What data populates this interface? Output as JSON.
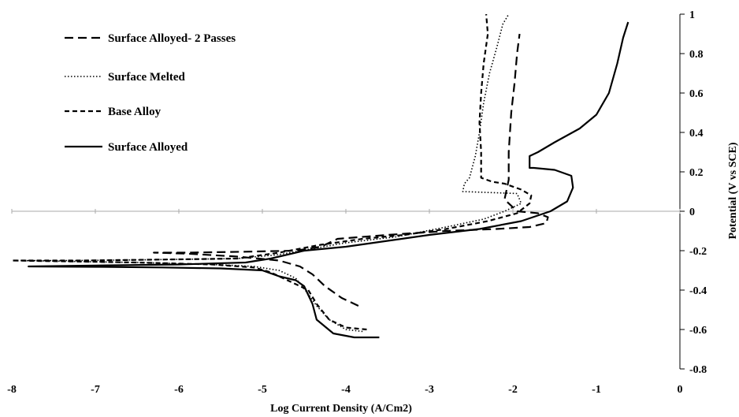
{
  "chart_data": {
    "type": "line",
    "xlabel": "Log Current Density (A/Cm2)",
    "ylabel": "Potential (V vs SCE)",
    "xlim": [
      -8,
      0
    ],
    "ylim": [
      -0.8,
      1
    ],
    "x_ticks": [
      -8,
      -7,
      -6,
      -5,
      -4,
      -3,
      -2,
      -1,
      0
    ],
    "x_tick_labels": [
      "-8",
      "-7",
      "-6",
      "-5",
      "-4",
      "-3",
      "-2",
      "-1",
      "0"
    ],
    "y_ticks": [
      -0.8,
      -0.6,
      -0.4,
      -0.2,
      0,
      0.2,
      0.4,
      0.6,
      0.8,
      1
    ],
    "y_tick_labels": [
      "-0.8",
      "-0.6",
      "-0.4",
      "-0.2",
      "0",
      "0.2",
      "0.4",
      "0.6",
      "0.8",
      "1"
    ],
    "y_axis_side": "right",
    "grid": false,
    "legend_position": "top-left",
    "series": [
      {
        "name": "Surface Alloyed- 2 Passes",
        "dash": "long-dash",
        "color": "#000000",
        "points": [
          [
            -3.85,
            -0.48
          ],
          [
            -4.05,
            -0.44
          ],
          [
            -4.25,
            -0.38
          ],
          [
            -4.4,
            -0.32
          ],
          [
            -4.55,
            -0.28
          ],
          [
            -4.8,
            -0.25
          ],
          [
            -5.3,
            -0.23
          ],
          [
            -5.9,
            -0.215
          ],
          [
            -6.3,
            -0.21
          ],
          [
            -5.9,
            -0.21
          ],
          [
            -5.2,
            -0.205
          ],
          [
            -4.6,
            -0.2
          ],
          [
            -4.3,
            -0.18
          ],
          [
            -4.1,
            -0.14
          ],
          [
            -3.5,
            -0.12
          ],
          [
            -2.8,
            -0.1
          ],
          [
            -2.2,
            -0.09
          ],
          [
            -1.8,
            -0.08
          ],
          [
            -1.6,
            -0.06
          ],
          [
            -1.58,
            -0.03
          ],
          [
            -1.7,
            -0.01
          ],
          [
            -1.95,
            0.0
          ],
          [
            -2.1,
            0.06
          ],
          [
            -2.05,
            0.16
          ],
          [
            -2.05,
            0.3
          ],
          [
            -2.02,
            0.5
          ],
          [
            -1.98,
            0.65
          ],
          [
            -1.95,
            0.8
          ],
          [
            -1.92,
            0.9
          ]
        ]
      },
      {
        "name": "Surface Melted",
        "dash": "dotted",
        "color": "#000000",
        "points": [
          [
            -3.8,
            -0.61
          ],
          [
            -4.0,
            -0.6
          ],
          [
            -4.2,
            -0.55
          ],
          [
            -4.35,
            -0.48
          ],
          [
            -4.45,
            -0.42
          ],
          [
            -4.6,
            -0.34
          ],
          [
            -4.8,
            -0.3
          ],
          [
            -5.1,
            -0.28
          ],
          [
            -5.6,
            -0.27
          ],
          [
            -6.5,
            -0.26
          ],
          [
            -7.2,
            -0.255
          ],
          [
            -7.9,
            -0.25
          ],
          [
            -7.2,
            -0.25
          ],
          [
            -6.2,
            -0.245
          ],
          [
            -5.3,
            -0.24
          ],
          [
            -4.8,
            -0.22
          ],
          [
            -4.4,
            -0.19
          ],
          [
            -4.0,
            -0.16
          ],
          [
            -3.4,
            -0.13
          ],
          [
            -2.8,
            -0.08
          ],
          [
            -2.35,
            -0.04
          ],
          [
            -2.1,
            0.0
          ],
          [
            -1.9,
            0.04
          ],
          [
            -1.95,
            0.09
          ],
          [
            -2.6,
            0.1
          ],
          [
            -2.58,
            0.14
          ],
          [
            -2.52,
            0.17
          ],
          [
            -2.45,
            0.28
          ],
          [
            -2.4,
            0.4
          ],
          [
            -2.35,
            0.55
          ],
          [
            -2.28,
            0.7
          ],
          [
            -2.2,
            0.82
          ],
          [
            -2.12,
            0.95
          ],
          [
            -2.05,
            1.0
          ]
        ]
      },
      {
        "name": "Base Alloy",
        "dash": "short-dash",
        "color": "#000000",
        "points": [
          [
            -3.75,
            -0.6
          ],
          [
            -4.0,
            -0.59
          ],
          [
            -4.2,
            -0.55
          ],
          [
            -4.35,
            -0.47
          ],
          [
            -4.45,
            -0.4
          ],
          [
            -4.65,
            -0.36
          ],
          [
            -4.9,
            -0.31
          ],
          [
            -5.1,
            -0.285
          ],
          [
            -5.6,
            -0.27
          ],
          [
            -6.5,
            -0.26
          ],
          [
            -7.2,
            -0.255
          ],
          [
            -8.0,
            -0.25
          ],
          [
            -7.2,
            -0.25
          ],
          [
            -6.2,
            -0.245
          ],
          [
            -5.3,
            -0.24
          ],
          [
            -4.8,
            -0.21
          ],
          [
            -4.3,
            -0.17
          ],
          [
            -3.8,
            -0.14
          ],
          [
            -3.3,
            -0.12
          ],
          [
            -2.8,
            -0.09
          ],
          [
            -2.3,
            -0.05
          ],
          [
            -1.95,
            -0.01
          ],
          [
            -1.8,
            0.04
          ],
          [
            -1.78,
            0.08
          ],
          [
            -1.9,
            0.11
          ],
          [
            -2.1,
            0.14
          ],
          [
            -2.25,
            0.15
          ],
          [
            -2.38,
            0.17
          ],
          [
            -2.38,
            0.3
          ],
          [
            -2.4,
            0.45
          ],
          [
            -2.38,
            0.6
          ],
          [
            -2.35,
            0.75
          ],
          [
            -2.3,
            0.9
          ],
          [
            -2.32,
            1.0
          ]
        ]
      },
      {
        "name": "Surface Alloyed",
        "dash": "solid",
        "color": "#000000",
        "points": [
          [
            -3.6,
            -0.64
          ],
          [
            -3.9,
            -0.64
          ],
          [
            -4.15,
            -0.62
          ],
          [
            -4.35,
            -0.55
          ],
          [
            -4.4,
            -0.47
          ],
          [
            -4.5,
            -0.38
          ],
          [
            -4.6,
            -0.35
          ],
          [
            -4.8,
            -0.33
          ],
          [
            -5.0,
            -0.3
          ],
          [
            -5.5,
            -0.29
          ],
          [
            -6.2,
            -0.285
          ],
          [
            -7.0,
            -0.282
          ],
          [
            -7.8,
            -0.28
          ],
          [
            -7.0,
            -0.275
          ],
          [
            -6.0,
            -0.27
          ],
          [
            -5.2,
            -0.26
          ],
          [
            -4.9,
            -0.24
          ],
          [
            -4.5,
            -0.2
          ],
          [
            -4.0,
            -0.18
          ],
          [
            -3.5,
            -0.15
          ],
          [
            -3.0,
            -0.12
          ],
          [
            -2.4,
            -0.09
          ],
          [
            -1.9,
            -0.05
          ],
          [
            -1.55,
            0.0
          ],
          [
            -1.35,
            0.05
          ],
          [
            -1.28,
            0.12
          ],
          [
            -1.3,
            0.18
          ],
          [
            -1.5,
            0.21
          ],
          [
            -1.75,
            0.22
          ],
          [
            -1.8,
            0.22
          ],
          [
            -1.8,
            0.28
          ],
          [
            -1.7,
            0.3
          ],
          [
            -1.5,
            0.35
          ],
          [
            -1.2,
            0.42
          ],
          [
            -1.0,
            0.49
          ],
          [
            -0.85,
            0.6
          ],
          [
            -0.75,
            0.75
          ],
          [
            -0.68,
            0.88
          ],
          [
            -0.62,
            0.96
          ]
        ]
      }
    ]
  }
}
